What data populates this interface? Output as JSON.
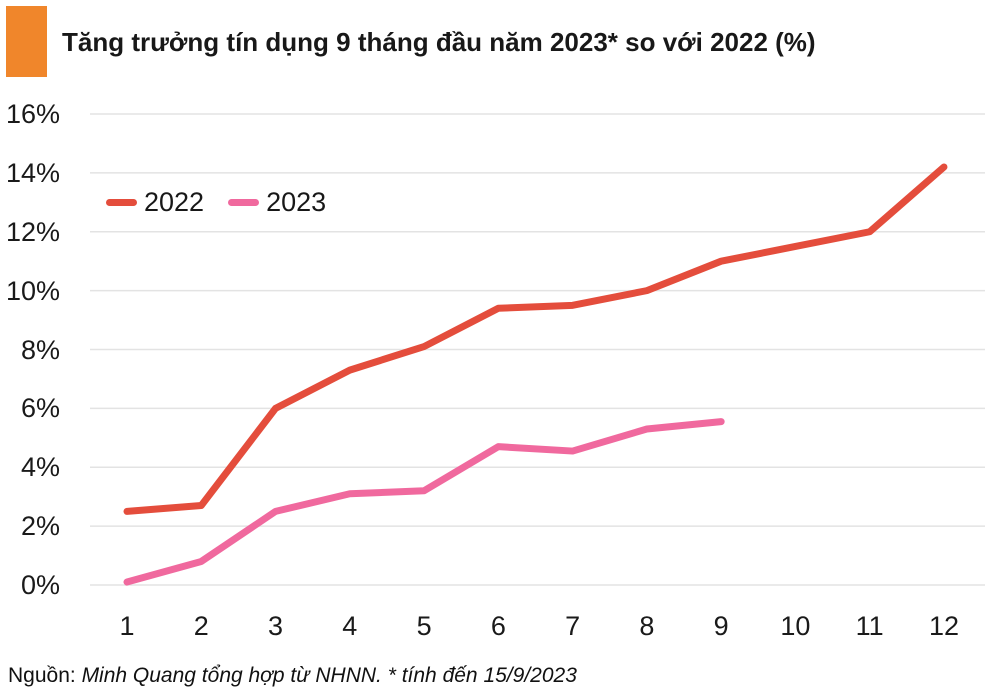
{
  "title": "Tăng trưởng tín dụng 9 tháng đầu năm 2023* so với 2022 (%)",
  "source": {
    "prefix": "Nguồn:",
    "text": "Minh Quang tổng hợp từ NHNN. * tính đến 15/9/2023"
  },
  "colors": {
    "accent": "#F0862B",
    "series_2022": "#E44D3C",
    "series_2023": "#F0699E",
    "gridline": "#E3E3E3",
    "text": "#1A1A1A"
  },
  "chart_data": {
    "type": "line",
    "title": "Tăng trưởng tín dụng 9 tháng đầu năm 2023* so với 2022 (%)",
    "xlabel": "",
    "ylabel": "",
    "x": [
      1,
      2,
      3,
      4,
      5,
      6,
      7,
      8,
      9,
      10,
      11,
      12
    ],
    "series": [
      {
        "name": "2022",
        "color_key": "series_2022",
        "values": [
          2.5,
          2.7,
          6.0,
          7.3,
          8.1,
          9.4,
          9.5,
          10.0,
          11.0,
          11.5,
          12.0,
          14.2
        ]
      },
      {
        "name": "2023",
        "color_key": "series_2023",
        "values": [
          0.1,
          0.8,
          2.5,
          3.1,
          3.2,
          4.7,
          4.55,
          5.3,
          5.55
        ]
      }
    ],
    "y_ticks": [
      0,
      2,
      4,
      6,
      8,
      10,
      12,
      14,
      16
    ],
    "y_tick_suffix": "%",
    "ylim": [
      0,
      16
    ],
    "grid": true,
    "legend_position": "top-left-inside"
  }
}
